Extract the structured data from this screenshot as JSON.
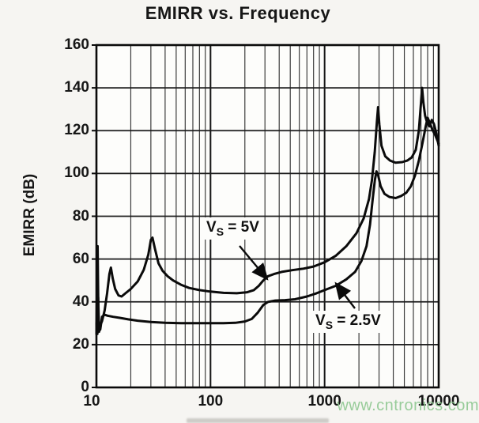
{
  "watermark": {
    "text": "www.cntronics.com",
    "color": "#8cc78f"
  },
  "chart_data": {
    "type": "line",
    "title": "EMIRR vs. Frequency",
    "xlabel": "",
    "ylabel": "EMIRR (dB)",
    "x_scale": "log",
    "xlim": [
      10,
      10000
    ],
    "ylim": [
      0,
      160
    ],
    "x_ticks": [
      10,
      100,
      1000,
      10000
    ],
    "x_tick_labels": [
      "10",
      "100",
      "1000",
      "10000"
    ],
    "y_ticks": [
      0,
      20,
      40,
      60,
      80,
      100,
      120,
      140,
      160
    ],
    "y_tick_labels": [
      "0",
      "20",
      "40",
      "60",
      "80",
      "100",
      "120",
      "140",
      "160"
    ],
    "grid": "x: log decades with minor lines 2-9; y: major lines every 20 dB",
    "legend_position": "inline-annotations",
    "line_color": "#0b0b0b",
    "series": [
      {
        "name": "VS = 5V",
        "label": {
          "prefix": "V",
          "sub": "S",
          "suffix": " = 5V"
        },
        "points": [
          [
            10,
            25
          ],
          [
            10.15,
            55
          ],
          [
            10.25,
            66
          ],
          [
            10.4,
            34
          ],
          [
            10.55,
            26
          ],
          [
            10.8,
            29
          ],
          [
            11.2,
            31
          ],
          [
            11.8,
            36
          ],
          [
            12.4,
            44
          ],
          [
            13,
            53
          ],
          [
            13.4,
            56
          ],
          [
            13.9,
            51
          ],
          [
            14.6,
            46
          ],
          [
            15.6,
            43
          ],
          [
            16.6,
            42.5
          ],
          [
            18,
            44
          ],
          [
            20,
            46
          ],
          [
            23,
            49.5
          ],
          [
            26,
            55
          ],
          [
            28.5,
            62
          ],
          [
            30,
            69
          ],
          [
            31,
            70
          ],
          [
            32.5,
            65
          ],
          [
            35,
            58
          ],
          [
            38,
            54.5
          ],
          [
            42,
            52
          ],
          [
            47,
            50
          ],
          [
            55,
            48
          ],
          [
            65,
            46.5
          ],
          [
            80,
            45.5
          ],
          [
            100,
            44.8
          ],
          [
            130,
            44.2
          ],
          [
            170,
            44
          ],
          [
            210,
            44.5
          ],
          [
            240,
            45.5
          ],
          [
            265,
            47.5
          ],
          [
            290,
            50
          ],
          [
            320,
            52
          ],
          [
            360,
            53
          ],
          [
            420,
            54
          ],
          [
            520,
            54.8
          ],
          [
            650,
            55.5
          ],
          [
            800,
            56.5
          ],
          [
            1000,
            58.5
          ],
          [
            1250,
            61.5
          ],
          [
            1550,
            66
          ],
          [
            1900,
            72
          ],
          [
            2200,
            79
          ],
          [
            2450,
            88
          ],
          [
            2600,
            97
          ],
          [
            2750,
            110
          ],
          [
            2870,
            124
          ],
          [
            2940,
            131
          ],
          [
            3020,
            123
          ],
          [
            3150,
            113
          ],
          [
            3400,
            108
          ],
          [
            3750,
            106
          ],
          [
            4200,
            105
          ],
          [
            4800,
            105.3
          ],
          [
            5300,
            106
          ],
          [
            5800,
            107.5
          ],
          [
            6300,
            111
          ],
          [
            6700,
            120
          ],
          [
            7000,
            133
          ],
          [
            7150,
            140
          ],
          [
            7350,
            133
          ],
          [
            7600,
            127
          ],
          [
            7900,
            124
          ],
          [
            8300,
            122
          ],
          [
            8700,
            125
          ],
          [
            9100,
            123
          ],
          [
            9500,
            119
          ],
          [
            10000,
            113
          ]
        ]
      },
      {
        "name": "VS = 2.5V",
        "label": {
          "prefix": "V",
          "sub": "S",
          "suffix": " = 2.5V"
        },
        "points": [
          [
            10,
            30
          ],
          [
            10.2,
            25
          ],
          [
            10.35,
            42
          ],
          [
            10.5,
            30
          ],
          [
            10.8,
            27
          ],
          [
            11.2,
            33
          ],
          [
            11.8,
            34
          ],
          [
            12.5,
            33.5
          ],
          [
            14,
            33
          ],
          [
            16,
            32.5
          ],
          [
            19,
            31.8
          ],
          [
            23,
            31.2
          ],
          [
            30,
            30.6
          ],
          [
            40,
            30.2
          ],
          [
            55,
            30
          ],
          [
            75,
            30
          ],
          [
            100,
            30
          ],
          [
            130,
            30
          ],
          [
            165,
            30.2
          ],
          [
            200,
            30.8
          ],
          [
            230,
            32
          ],
          [
            260,
            35
          ],
          [
            290,
            38.5
          ],
          [
            320,
            40
          ],
          [
            370,
            40.6
          ],
          [
            450,
            40.8
          ],
          [
            550,
            41.2
          ],
          [
            700,
            42.5
          ],
          [
            850,
            44
          ],
          [
            1000,
            45.5
          ],
          [
            1250,
            47.5
          ],
          [
            1550,
            50.5
          ],
          [
            1850,
            54
          ],
          [
            2100,
            59
          ],
          [
            2330,
            66
          ],
          [
            2500,
            76
          ],
          [
            2640,
            88
          ],
          [
            2760,
            97
          ],
          [
            2850,
            101
          ],
          [
            2950,
            99
          ],
          [
            3100,
            94
          ],
          [
            3350,
            90.5
          ],
          [
            3700,
            89
          ],
          [
            4200,
            88.5
          ],
          [
            4700,
            89.5
          ],
          [
            5200,
            91
          ],
          [
            5700,
            94
          ],
          [
            6200,
            99
          ],
          [
            6700,
            106
          ],
          [
            7200,
            114
          ],
          [
            7700,
            122
          ],
          [
            8000,
            126
          ],
          [
            8300,
            124
          ],
          [
            8800,
            120.5
          ],
          [
            9300,
            118
          ],
          [
            10000,
            114
          ]
        ]
      }
    ],
    "annotations": [
      {
        "series": "VS = 5V",
        "arrow_points_to": {
          "x": 310,
          "y_db": 51
        }
      },
      {
        "series": "VS = 2.5V",
        "arrow_points_to": {
          "x": 1230,
          "y_db": 49
        }
      }
    ]
  }
}
